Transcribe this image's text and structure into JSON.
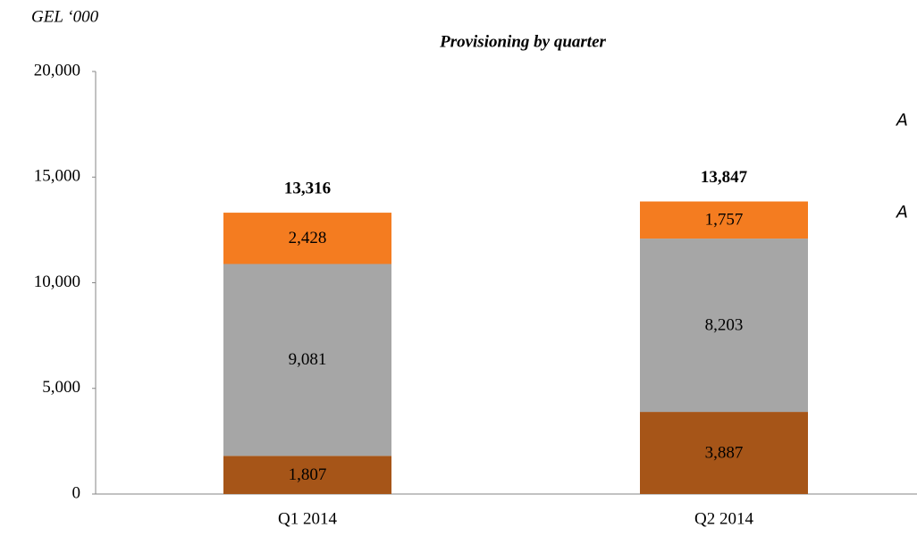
{
  "chart_data": {
    "type": "stacked_bar",
    "title": "Provisioning by quarter",
    "unit_label": "GEL ‘000",
    "categories": [
      "Q1 2014",
      "Q2 2014"
    ],
    "series": [
      {
        "color": "#a65518",
        "values": [
          1807,
          3887
        ],
        "value_labels": [
          "1,807",
          "3,887"
        ]
      },
      {
        "color": "#a6a6a6",
        "values": [
          9081,
          8203
        ],
        "value_labels": [
          "9,081",
          "8,203"
        ]
      },
      {
        "color": "#f47c20",
        "values": [
          2428,
          1757
        ],
        "value_labels": [
          "2,428",
          "1,757"
        ]
      }
    ],
    "totals": [
      13316,
      13847
    ],
    "total_labels": [
      "13,316",
      "13,847"
    ],
    "ylim": [
      0,
      20000
    ],
    "yticks": [
      0,
      {
        "value": 5000,
        "label": "5,000"
      },
      {
        "value": 10000,
        "label": "10,000"
      },
      {
        "value": 15000,
        "label": "15,000"
      },
      {
        "value": 20000,
        "label": "20,000"
      }
    ],
    "annotations": [
      "A",
      "A"
    ]
  }
}
